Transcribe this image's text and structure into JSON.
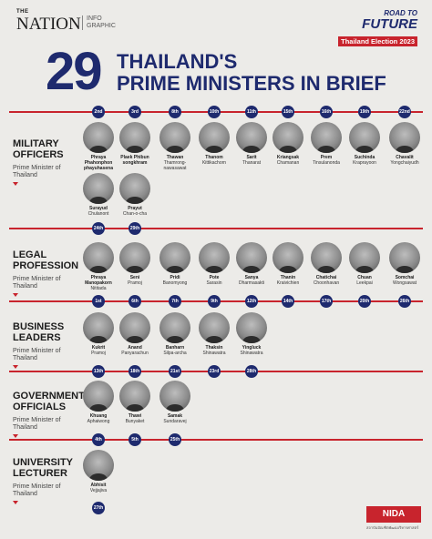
{
  "header": {
    "brand_the": "THE",
    "brand_nation": "NATION",
    "brand_info": "INFO GRAPHIC",
    "road": "ROAD TO",
    "future": "FUTURE",
    "election": "Thailand Election 2023",
    "bignum": "29",
    "title_l1": "THAILAND'S",
    "title_l2": "PRIME MINISTERS IN BRIEF"
  },
  "categories": [
    {
      "title_l1": "MILITARY",
      "title_l2": "OFFICERS",
      "sub": "Prime Minister of Thailand"
    },
    {
      "title_l1": "LEGAL",
      "title_l2": "PROFESSION",
      "sub": "Prime Minister of Thailand"
    },
    {
      "title_l1": "BUSINESS",
      "title_l2": "LEADERS",
      "sub": "Prime Minister of Thailand"
    },
    {
      "title_l1": "GOVERNMENT",
      "title_l2": "OFFICIALS",
      "sub": "Prime Minister of Thailand"
    },
    {
      "title_l1": "UNIVERSITY",
      "title_l2": "LECTURER",
      "sub": "Prime Minister of Thailand"
    }
  ],
  "military_top": [
    "2nd",
    "3rd",
    "8th",
    "10th",
    "11th",
    "15th",
    "16th",
    "19th",
    "22nd"
  ],
  "military": [
    {
      "n": "Phraya Phahonphon phayuhasena",
      "s": ""
    },
    {
      "n": "Plaek Phibun songkhram",
      "s": ""
    },
    {
      "n": "Thawan",
      "s": "Thamrong-nawasawat"
    },
    {
      "n": "Thanom",
      "s": "Kittikachorn"
    },
    {
      "n": "Sarit",
      "s": "Thanarat"
    },
    {
      "n": "Kriangsak",
      "s": "Chamanan"
    },
    {
      "n": "Prem",
      "s": "Tinsulanonda"
    },
    {
      "n": "Suchinda",
      "s": "Kraprayoon"
    },
    {
      "n": "Chavalit",
      "s": "Yongchaiyudh"
    },
    {
      "n": "Surayud",
      "s": "Chulanont"
    },
    {
      "n": "Prayut",
      "s": "Chan-o-cha"
    }
  ],
  "military_bottom": [
    "24th",
    "29th"
  ],
  "legal": [
    {
      "n": "Phraya Manopakorn",
      "s": "Nititada"
    },
    {
      "n": "Seni",
      "s": "Pramoj"
    },
    {
      "n": "Pridi",
      "s": "Banomyong"
    },
    {
      "n": "Pote",
      "s": "Sarasin"
    },
    {
      "n": "Sanya",
      "s": "Dharmasakti"
    },
    {
      "n": "Thanin",
      "s": "Kraivichien"
    },
    {
      "n": "Chatichai",
      "s": "Choonhavan"
    },
    {
      "n": "Chuan",
      "s": "Leekpai"
    },
    {
      "n": "Somchai",
      "s": "Wongsawat"
    }
  ],
  "legal_bottom": [
    "1st",
    "6th",
    "7th",
    "9th",
    "12th",
    "14th",
    "17th",
    "20th",
    "26th"
  ],
  "business": [
    {
      "n": "Kukrit",
      "s": "Pramoj"
    },
    {
      "n": "Anand",
      "s": "Panyarachun"
    },
    {
      "n": "Banharn",
      "s": "Silpa-archa"
    },
    {
      "n": "Thaksin",
      "s": "Shinawatra"
    },
    {
      "n": "Yingluck",
      "s": "Shinawatra"
    }
  ],
  "business_bottom": [
    "13th",
    "18th",
    "21st",
    "23rd",
    "28th"
  ],
  "government": [
    {
      "n": "Khuang",
      "s": "Aphaiwong"
    },
    {
      "n": "Thawi",
      "s": "Bunyaket"
    },
    {
      "n": "Samak",
      "s": "Sundaravej"
    }
  ],
  "government_bottom": [
    "4th",
    "5th",
    "25th"
  ],
  "university": [
    {
      "n": "Abhisit",
      "s": "Vejjajiva"
    }
  ],
  "university_bottom": [
    "27th"
  ],
  "footer": {
    "nida": "NIDA",
    "sub": "สถาบันบัณฑิตพัฒนบริหารศาสตร์"
  }
}
